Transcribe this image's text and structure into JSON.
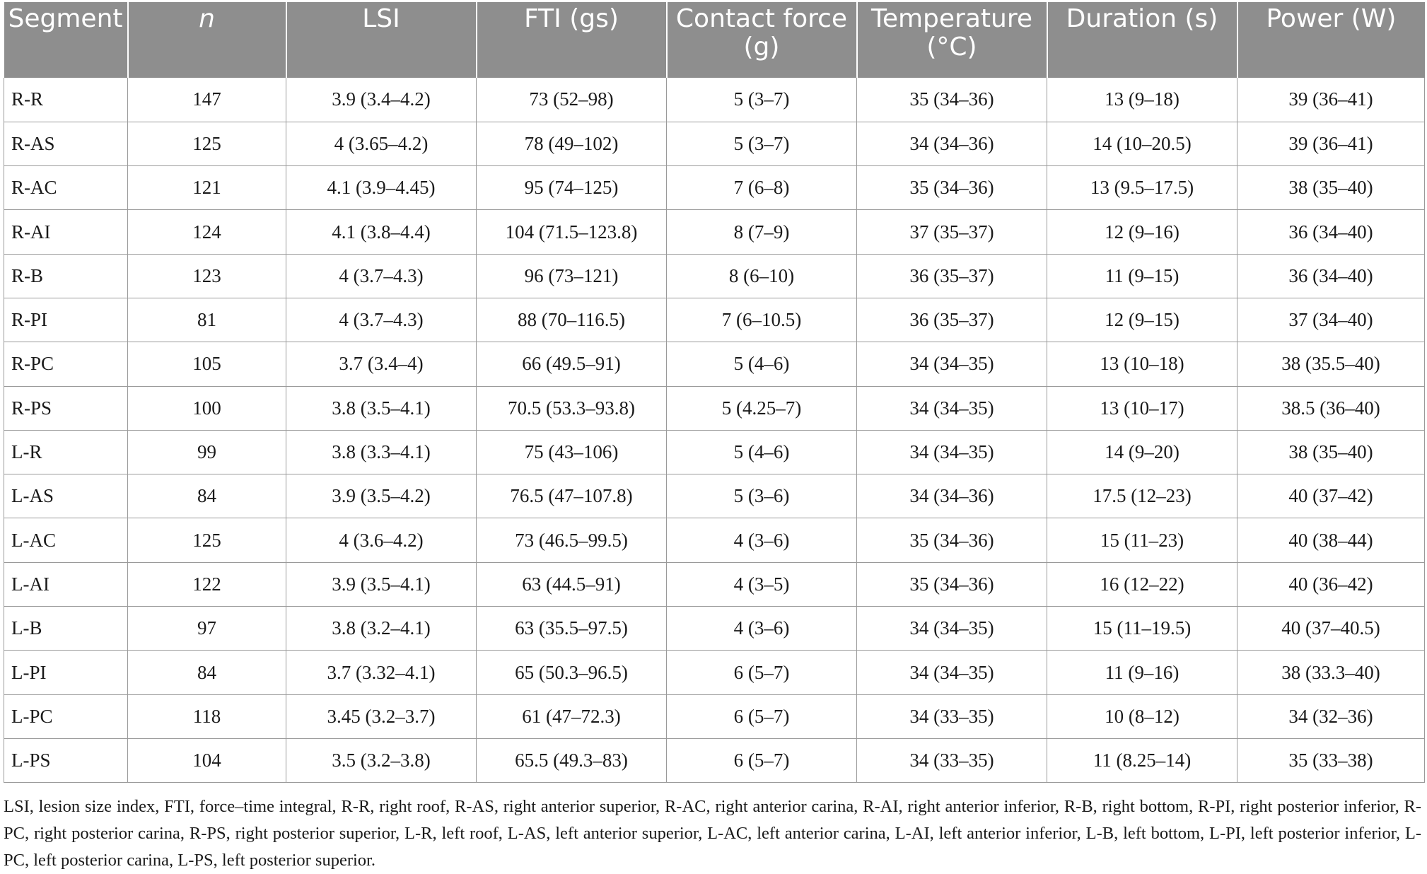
{
  "table": {
    "headers": [
      "Segment",
      "n",
      "LSI",
      "FTI (gs)",
      "Contact force (g)",
      "Temperature (°C)",
      "Duration (s)",
      "Power (W)"
    ],
    "rows": [
      [
        "R-R",
        "147",
        "3.9 (3.4–4.2)",
        "73 (52–98)",
        "5 (3–7)",
        "35 (34–36)",
        "13 (9–18)",
        "39 (36–41)"
      ],
      [
        "R-AS",
        "125",
        "4 (3.65–4.2)",
        "78 (49–102)",
        "5 (3–7)",
        "34 (34–36)",
        "14 (10–20.5)",
        "39 (36–41)"
      ],
      [
        "R-AC",
        "121",
        "4.1 (3.9–4.45)",
        "95 (74–125)",
        "7 (6–8)",
        "35 (34–36)",
        "13 (9.5–17.5)",
        "38 (35–40)"
      ],
      [
        "R-AI",
        "124",
        "4.1 (3.8–4.4)",
        "104 (71.5–123.8)",
        "8 (7–9)",
        "37 (35–37)",
        "12 (9–16)",
        "36 (34–40)"
      ],
      [
        "R-B",
        "123",
        "4 (3.7–4.3)",
        "96 (73–121)",
        "8 (6–10)",
        "36 (35–37)",
        "11 (9–15)",
        "36 (34–40)"
      ],
      [
        "R-PI",
        "81",
        "4 (3.7–4.3)",
        "88 (70–116.5)",
        "7 (6–10.5)",
        "36 (35–37)",
        "12 (9–15)",
        "37 (34–40)"
      ],
      [
        "R-PC",
        "105",
        "3.7 (3.4–4)",
        "66 (49.5–91)",
        "5 (4–6)",
        "34 (34–35)",
        "13 (10–18)",
        "38 (35.5–40)"
      ],
      [
        "R-PS",
        "100",
        "3.8 (3.5–4.1)",
        "70.5 (53.3–93.8)",
        "5 (4.25–7)",
        "34 (34–35)",
        "13 (10–17)",
        "38.5 (36–40)"
      ],
      [
        "L-R",
        "99",
        "3.8 (3.3–4.1)",
        "75 (43–106)",
        "5 (4–6)",
        "34 (34–35)",
        "14 (9–20)",
        "38 (35–40)"
      ],
      [
        "L-AS",
        "84",
        "3.9 (3.5–4.2)",
        "76.5 (47–107.8)",
        "5 (3–6)",
        "34 (34–36)",
        "17.5 (12–23)",
        "40 (37–42)"
      ],
      [
        "L-AC",
        "125",
        "4 (3.6–4.2)",
        "73 (46.5–99.5)",
        "4 (3–6)",
        "35 (34–36)",
        "15 (11–23)",
        "40 (38–44)"
      ],
      [
        "L-AI",
        "122",
        "3.9 (3.5–4.1)",
        "63 (44.5–91)",
        "4 (3–5)",
        "35 (34–36)",
        "16 (12–22)",
        "40 (36–42)"
      ],
      [
        "L-B",
        "97",
        "3.8 (3.2–4.1)",
        "63 (35.5–97.5)",
        "4 (3–6)",
        "34 (34–35)",
        "15 (11–19.5)",
        "40 (37–40.5)"
      ],
      [
        "L-PI",
        "84",
        "3.7 (3.32–4.1)",
        "65 (50.3–96.5)",
        "6 (5–7)",
        "34 (34–35)",
        "11 (9–16)",
        "38 (33.3–40)"
      ],
      [
        "L-PC",
        "118",
        "3.45 (3.2–3.7)",
        "61 (47–72.3)",
        "6 (5–7)",
        "34 (33–35)",
        "10 (8–12)",
        "34 (32–36)"
      ],
      [
        "L-PS",
        "104",
        "3.5 (3.2–3.8)",
        "65.5 (49.3–83)",
        "6 (5–7)",
        "34 (33–35)",
        "11 (8.25–14)",
        "35 (33–38)"
      ]
    ],
    "footnote": "LSI, lesion size index, FTI, force–time integral, R-R, right roof, R-AS, right anterior superior, R-AC, right anterior carina, R-AI, right anterior inferior, R-B, right bottom, R-PI, right posterior inferior, R-PC, right posterior carina, R-PS, right posterior superior, L-R, left roof, L-AS, left anterior superior, L-AC, left anterior carina, L-AI, left anterior inferior, L-B, left bottom, L-PI, left posterior inferior, L-PC, left posterior carina, L-PS, left posterior superior."
  },
  "colors": {
    "header_bg": "#8e8e8e",
    "header_text": "#ffffff",
    "grid_line": "#9a9a9a",
    "body_text": "#1a1a1a"
  }
}
